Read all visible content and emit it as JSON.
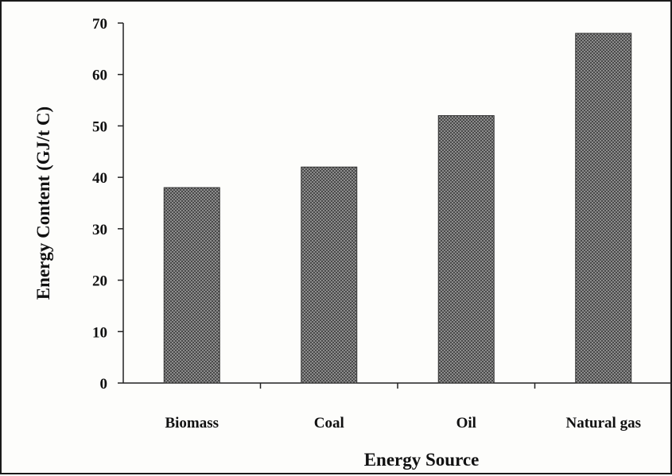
{
  "chart_data": {
    "type": "bar",
    "title": "",
    "xlabel": "Energy Source",
    "ylabel": "Energy Content (GJ/t C)",
    "categories": [
      "Biomass",
      "Coal",
      "Oil",
      "Natural gas"
    ],
    "values": [
      38,
      42,
      52,
      68
    ],
    "ylim": [
      0,
      70
    ],
    "yticks": [
      0,
      10,
      20,
      30,
      40,
      50,
      60,
      70
    ],
    "grid": false,
    "legend": "none",
    "colors": {
      "bar_fill": "#555555",
      "bar_hatch": "#9a9a9a",
      "axis": "#222222"
    }
  }
}
